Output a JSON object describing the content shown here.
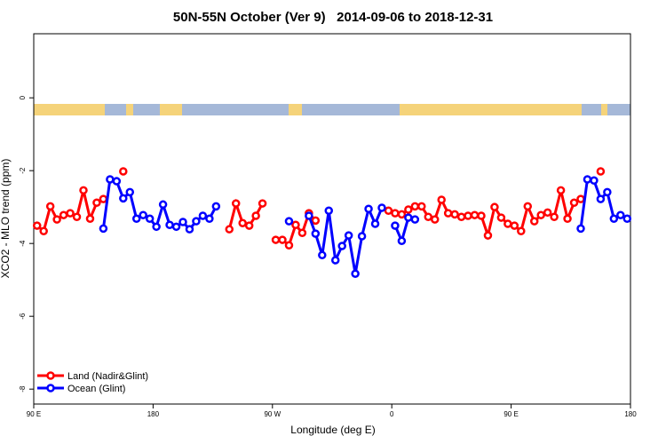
{
  "chart_data": {
    "type": "line",
    "title": "50N-55N October (Ver 9)   2014-09-06 to 2018-12-31",
    "x_label": "Longitude (deg E)",
    "y_label": "XCO2 - MLO trend (ppm)",
    "xlim": [
      90,
      540
    ],
    "ylim": [
      -8.41,
      1.76
    ],
    "xticks": [
      {
        "value": 90,
        "label": "90 E"
      },
      {
        "value": 180,
        "label": "180"
      },
      {
        "value": 270,
        "label": "90 W"
      },
      {
        "value": 360,
        "label": "0"
      },
      {
        "value": 450,
        "label": "90 E"
      },
      {
        "value": 540,
        "label": "180"
      }
    ],
    "yticks": [
      0,
      -2,
      -4,
      -6,
      -8
    ],
    "legend": "bottom-left",
    "x": [
      92.5,
      97.5,
      102.5,
      107.5,
      112.5,
      117.5,
      122.5,
      127.5,
      132.5,
      137.5,
      142.5,
      147.5,
      152.5,
      157.5,
      162.5,
      167.5,
      172.5,
      177.5,
      182.5,
      187.5,
      192.5,
      197.5,
      202.5,
      207.5,
      212.5,
      217.5,
      222.5,
      227.5,
      232.5,
      237.5,
      242.5,
      247.5,
      252.5,
      257.5,
      262.5,
      267.5,
      272.5,
      277.5,
      282.5,
      287.5,
      292.5,
      297.5,
      302.5,
      307.5,
      312.5,
      317.5,
      322.5,
      327.5,
      332.5,
      337.5,
      342.5,
      347.5,
      352.5,
      357.5,
      362.5,
      367.5,
      372.5,
      377.5,
      382.5,
      387.5,
      392.5,
      397.5,
      402.5,
      407.5,
      412.5,
      417.5,
      422.5,
      427.5,
      432.5,
      437.5,
      442.5,
      447.5,
      452.5,
      457.5,
      462.5,
      467.5,
      472.5,
      477.5,
      482.5,
      487.5,
      492.5,
      497.5,
      502.5,
      507.5,
      512.5,
      517.5,
      522.5,
      527.5,
      532.5,
      537.5
    ],
    "series": [
      {
        "name": "Land (Nadir&Glint)",
        "color": "#ff0000",
        "values": [
          -3.51,
          -3.66,
          -2.98,
          -3.34,
          -3.22,
          -3.17,
          -3.27,
          -2.54,
          -3.32,
          -2.88,
          -2.78,
          null,
          null,
          -2.02,
          null,
          null,
          null,
          null,
          null,
          null,
          null,
          null,
          null,
          null,
          null,
          null,
          null,
          null,
          null,
          -3.61,
          -2.9,
          -3.44,
          -3.51,
          -3.24,
          -2.9,
          null,
          -3.9,
          -3.9,
          -4.05,
          -3.49,
          -3.71,
          -3.17,
          -3.37,
          null,
          null,
          null,
          null,
          null,
          null,
          null,
          null,
          null,
          null,
          -3.1,
          -3.17,
          -3.2,
          -3.07,
          -2.98,
          -2.98,
          -3.27,
          -3.34,
          -2.8,
          -3.17,
          -3.2,
          -3.27,
          -3.24,
          -3.22,
          -3.24,
          -3.78,
          -3.0,
          -3.29,
          -3.46,
          -3.51,
          -3.66,
          -2.98,
          -3.39,
          -3.22,
          -3.15,
          -3.27,
          -2.54,
          -3.32,
          -2.88,
          -2.78,
          null,
          null,
          -2.02,
          null,
          null,
          null,
          null
        ]
      },
      {
        "name": "Ocean (Glint)",
        "color": "#0000ff",
        "values": [
          null,
          null,
          null,
          null,
          null,
          null,
          null,
          null,
          null,
          null,
          -3.59,
          -2.24,
          -2.29,
          -2.76,
          -2.59,
          -3.32,
          -3.22,
          -3.32,
          -3.54,
          -2.93,
          -3.49,
          -3.54,
          -3.41,
          -3.61,
          -3.39,
          -3.24,
          -3.32,
          -2.98,
          null,
          null,
          null,
          null,
          null,
          null,
          null,
          null,
          null,
          null,
          -3.39,
          null,
          null,
          -3.24,
          -3.73,
          -4.32,
          -3.1,
          -4.46,
          -4.07,
          -3.78,
          -4.83,
          -3.8,
          -3.05,
          -3.46,
          -3.02,
          null,
          -3.51,
          -3.93,
          -3.29,
          -3.34,
          null,
          null,
          null,
          null,
          null,
          null,
          null,
          null,
          null,
          null,
          null,
          null,
          null,
          null,
          null,
          null,
          null,
          null,
          null,
          null,
          null,
          null,
          null,
          null,
          -3.59,
          -2.24,
          -2.27,
          -2.78,
          -2.59,
          -3.32,
          -3.22,
          -3.32
        ]
      }
    ]
  }
}
